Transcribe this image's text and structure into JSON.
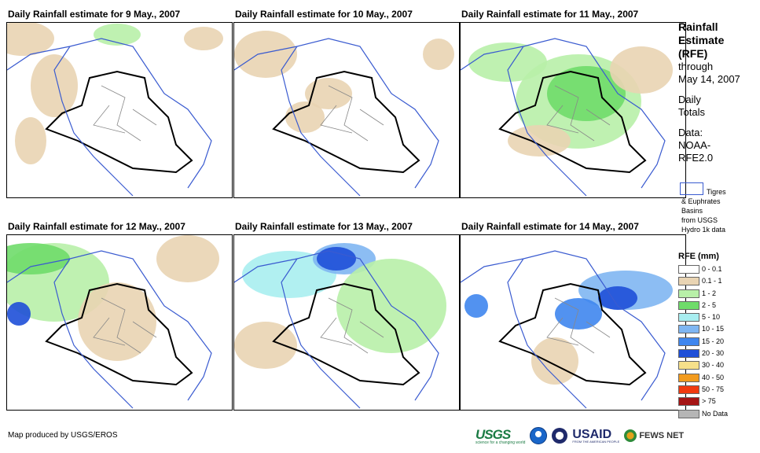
{
  "panels": [
    {
      "title": "Daily Rainfall estimate for 9 May., 2007"
    },
    {
      "title": "Daily Rainfall estimate for 10 May., 2007"
    },
    {
      "title": "Daily Rainfall estimate for 11 May., 2007"
    },
    {
      "title": "Daily Rainfall estimate for 12 May., 2007"
    },
    {
      "title": "Daily Rainfall estimate for 13 May., 2007"
    },
    {
      "title": "Daily Rainfall estimate for 14 May., 2007"
    }
  ],
  "side": {
    "title_lines": [
      "Rainfall",
      "Estimate",
      "(RFE)"
    ],
    "through": "through",
    "end_date": "May 14, 2007",
    "totals_lines": [
      "Daily",
      "Totals"
    ],
    "data_lines": [
      "Data:",
      "NOAA-",
      "RFE2.0"
    ]
  },
  "basin_legend": {
    "label": "Tigres",
    "lines": [
      "& Euphrates",
      "Basins",
      "from USGS",
      "Hydro 1k data"
    ]
  },
  "legend": {
    "title": "RFE (mm)",
    "classes": [
      {
        "label": "0 - 0.1",
        "color": "#ffffff"
      },
      {
        "label": "0.1 - 1",
        "color": "#e9d4b3"
      },
      {
        "label": "1 - 2",
        "color": "#b8f0a8"
      },
      {
        "label": "2 - 5",
        "color": "#6fdc6a"
      },
      {
        "label": "5 - 10",
        "color": "#a8eef0"
      },
      {
        "label": "10 - 15",
        "color": "#7fb6f2"
      },
      {
        "label": "15 - 20",
        "color": "#3f86ee"
      },
      {
        "label": "20 - 30",
        "color": "#1e4fd8"
      },
      {
        "label": "30 - 40",
        "color": "#f6e08a"
      },
      {
        "label": "40 - 50",
        "color": "#f29b1e"
      },
      {
        "label": "50 - 75",
        "color": "#f03a10"
      },
      {
        "label": "> 75",
        "color": "#a51414"
      },
      {
        "label": "No Data",
        "color": "#b5b5b5"
      }
    ]
  },
  "credit": "Map produced by USGS/EROS",
  "logos": {
    "usgs": "USGS",
    "usgs_tag": "science for a changing world",
    "usaid": "USAID",
    "usaid_tag": "FROM THE AMERICAN PEOPLE",
    "fews": "FEWS NET"
  }
}
